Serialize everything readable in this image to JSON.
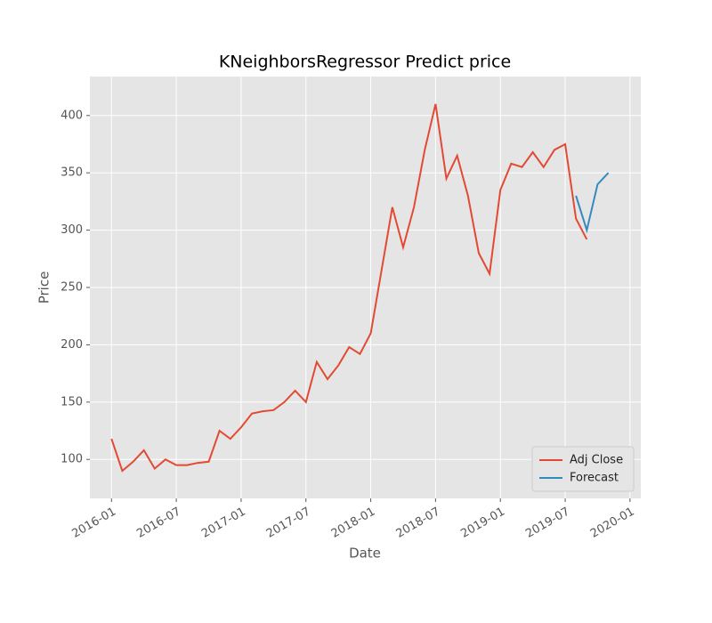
{
  "chart_data": {
    "type": "line",
    "title": "KNeighborsRegressor Predict price",
    "x_label": "Date",
    "y_label": "Price",
    "series": [
      {
        "name": "Adj Close",
        "color": "#E24A33",
        "x": [
          "2016-01",
          "2016-02",
          "2016-03",
          "2016-04",
          "2016-05",
          "2016-06",
          "2016-07",
          "2016-08",
          "2016-09",
          "2016-10",
          "2016-11",
          "2016-12",
          "2017-01",
          "2017-02",
          "2017-03",
          "2017-04",
          "2017-05",
          "2017-06",
          "2017-07",
          "2017-08",
          "2017-09",
          "2017-10",
          "2017-11",
          "2017-12",
          "2018-01",
          "2018-02",
          "2018-03",
          "2018-04",
          "2018-05",
          "2018-06",
          "2018-07",
          "2018-08",
          "2018-09",
          "2018-10",
          "2018-11",
          "2018-12",
          "2019-01",
          "2019-02",
          "2019-03",
          "2019-04",
          "2019-05",
          "2019-06",
          "2019-07",
          "2019-08",
          "2019-09"
        ],
        "values": [
          118,
          90,
          98,
          108,
          92,
          100,
          95,
          95,
          97,
          98,
          125,
          118,
          128,
          140,
          142,
          143,
          150,
          160,
          150,
          185,
          170,
          182,
          198,
          192,
          210,
          265,
          320,
          285,
          320,
          370,
          410,
          345,
          365,
          330,
          280,
          262,
          335,
          358,
          355,
          368,
          355,
          370,
          375,
          310,
          292
        ]
      },
      {
        "name": "Forecast",
        "color": "#348ABD",
        "x": [
          "2019-08",
          "2019-09",
          "2019-10",
          "2019-11"
        ],
        "values": [
          330,
          300,
          340,
          350
        ]
      }
    ],
    "xlim": [
      "2015-11",
      "2020-02"
    ],
    "xticks": [
      "2016-01",
      "2016-07",
      "2017-01",
      "2017-07",
      "2018-01",
      "2018-07",
      "2019-01",
      "2019-07",
      "2020-01"
    ],
    "ylim": [
      66,
      434
    ],
    "yticks": [
      100,
      150,
      200,
      250,
      300,
      350,
      400
    ],
    "grid": true,
    "legend": "lower right"
  }
}
